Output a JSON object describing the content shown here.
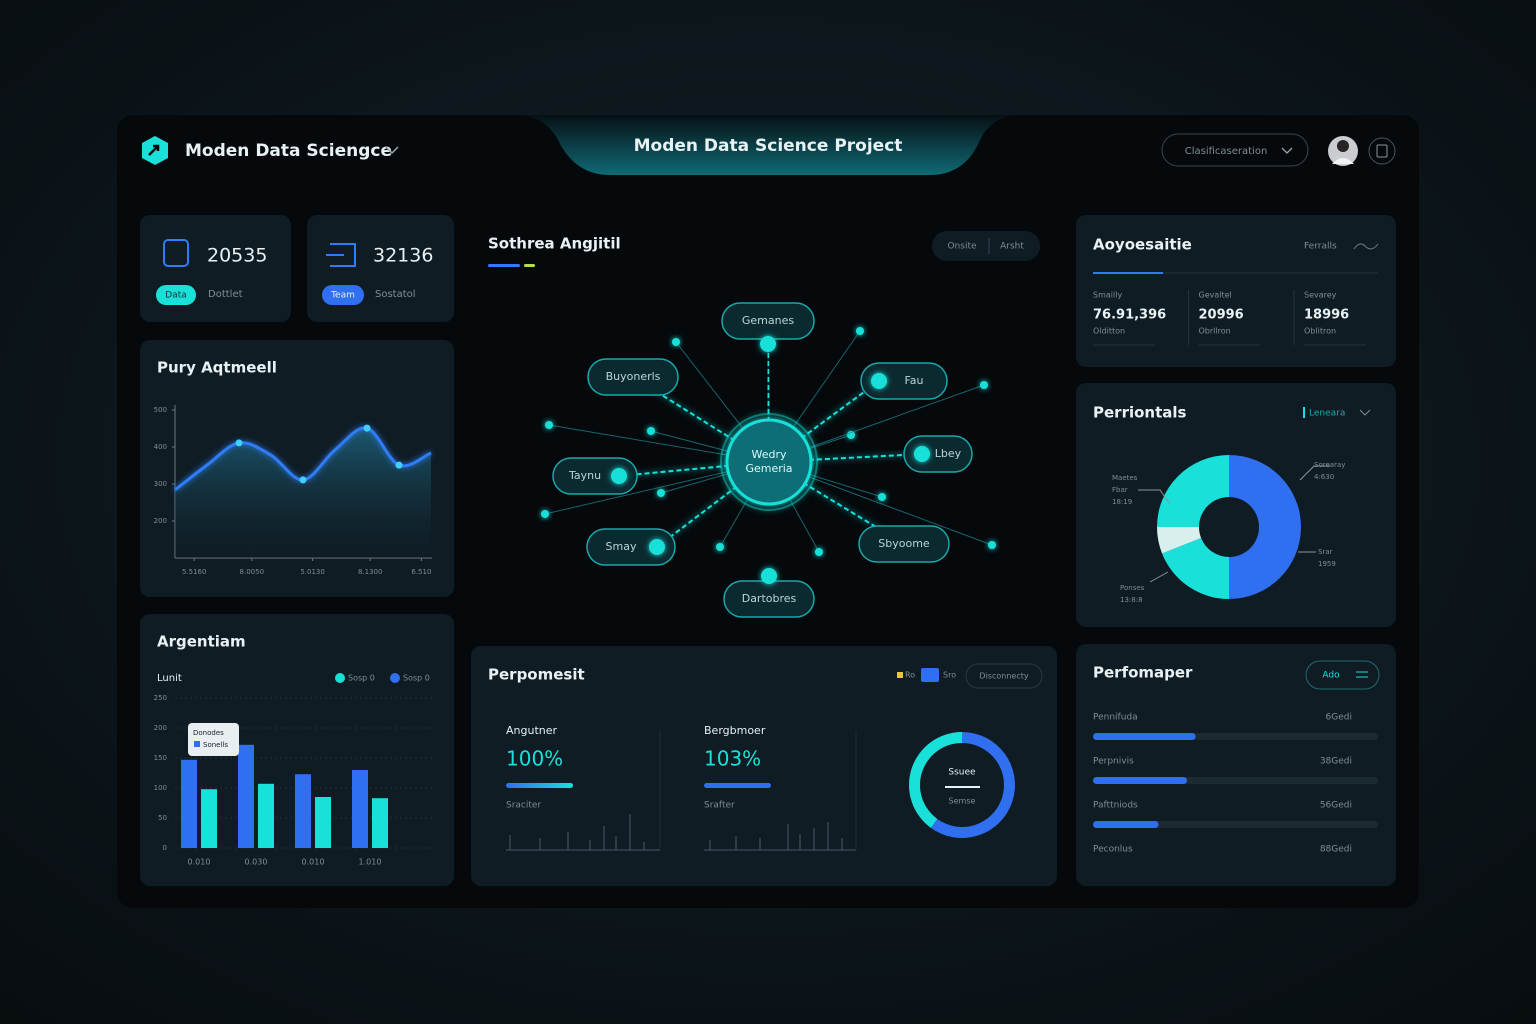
{
  "header": {
    "brand": "Moden Data Sciengce",
    "title": "Moden Data Science Project",
    "search": "Clasificaseration"
  },
  "stats": [
    {
      "value": "20535",
      "tag": "Data",
      "label": "Dottlet"
    },
    {
      "value": "32136",
      "tag": "Team",
      "label": "Sostatol"
    }
  ],
  "line_panel": {
    "title": "Pury Aqtmeell",
    "chart_data": {
      "type": "line",
      "x": [
        0,
        1,
        2,
        3,
        4,
        5,
        6,
        7,
        8
      ],
      "values": [
        284,
        351,
        411,
        378,
        311,
        392,
        451,
        351,
        384
      ],
      "xlim": [
        0,
        8
      ],
      "xticks": [
        {
          "value": 0.6,
          "label": "5.5160"
        },
        {
          "value": 2.4,
          "label": "8.0050"
        },
        {
          "value": 4.3,
          "label": "5.0130"
        },
        {
          "value": 6.1,
          "label": "8.1300"
        },
        {
          "value": 7.7,
          "label": "6.510"
        }
      ],
      "ylim": [
        100,
        500
      ],
      "yticks": [
        200,
        300,
        400,
        500
      ],
      "color": "#2f7cf6"
    }
  },
  "bar_panel": {
    "title": "Argentiam",
    "axis_label": "Lunit",
    "tooltip": [
      "Donodes",
      "Sonells"
    ],
    "chart_data": {
      "type": "bar",
      "categories": [
        "0.010",
        "0.030",
        "0.010",
        "1.010"
      ],
      "series": [
        {
          "name": "Sosp 0",
          "color": "#2f6ff0",
          "values": [
            147,
            172,
            123,
            130
          ]
        },
        {
          "name": "Sosp 0",
          "color": "#19e0d8",
          "values": [
            98,
            107,
            85,
            83
          ]
        }
      ],
      "ylim": [
        0,
        250
      ],
      "yticks": [
        0,
        50,
        100,
        150,
        200,
        250
      ],
      "grid": true
    }
  },
  "network": {
    "title": "Sothrea Angjitil",
    "toggle": [
      "Onsite",
      "Arsht"
    ],
    "center": [
      "Wedry",
      "Gemeria"
    ],
    "nodes": [
      "Gemanes",
      "Buyonerls",
      "Fau",
      "Lbey",
      "Taynu",
      "Smay",
      "Sbyoome",
      "Dartobres"
    ]
  },
  "performance": {
    "title": "Perpomesit",
    "legend": [
      "Ro",
      "Sro"
    ],
    "button": "Disconnecty",
    "cards": [
      {
        "label": "Angutner",
        "value": "100%",
        "sub": "Sraciter"
      },
      {
        "label": "Bergbmoer",
        "value": "103%",
        "sub": "Srafter"
      }
    ],
    "donut_text": [
      "Ssuee",
      "Semse"
    ],
    "chart_data": {
      "type": "donut",
      "values": [
        60,
        40
      ],
      "colors": [
        "#2f6ff0",
        "#19e0d8"
      ]
    }
  },
  "summary": {
    "title": "Aoyoesaitie",
    "link": "Ferralls",
    "items": [
      {
        "label": "Smailly",
        "value": "76.91,396",
        "sub": "Olditton"
      },
      {
        "label": "Gevaltel",
        "value": "20996",
        "sub": "Obrllron"
      },
      {
        "label": "Sevarey",
        "value": "18996",
        "sub": "Oblitron"
      }
    ]
  },
  "pie_panel": {
    "title": "Perriontals",
    "dropdown": "Leneara",
    "annotations": [
      [
        "Maetes",
        "Fbar",
        "18:19"
      ],
      [
        "Sorearay",
        "4:630"
      ],
      [
        "Srar",
        "1959"
      ],
      [
        "Ponses",
        "13:8:8"
      ]
    ],
    "chart_data": {
      "type": "pie",
      "values": [
        50,
        19,
        6,
        25
      ],
      "colors": [
        "#2f6ff0",
        "#19e0d8",
        "#d8efee",
        "#19e0d8"
      ]
    }
  },
  "progress": {
    "title": "Perfomaper",
    "button": "Ado",
    "xlim": [
      0,
      100
    ],
    "rows": [
      {
        "label": "Pennifuda",
        "value_text": "6Gedi",
        "value": 36
      },
      {
        "label": "Perpnivis",
        "value_text": "38Gedi",
        "value": 33
      },
      {
        "label": "Pafttniods",
        "value_text": "56Gedi",
        "value": 23
      },
      {
        "label": "Peconlus",
        "value_text": "88Gedi"
      }
    ]
  }
}
